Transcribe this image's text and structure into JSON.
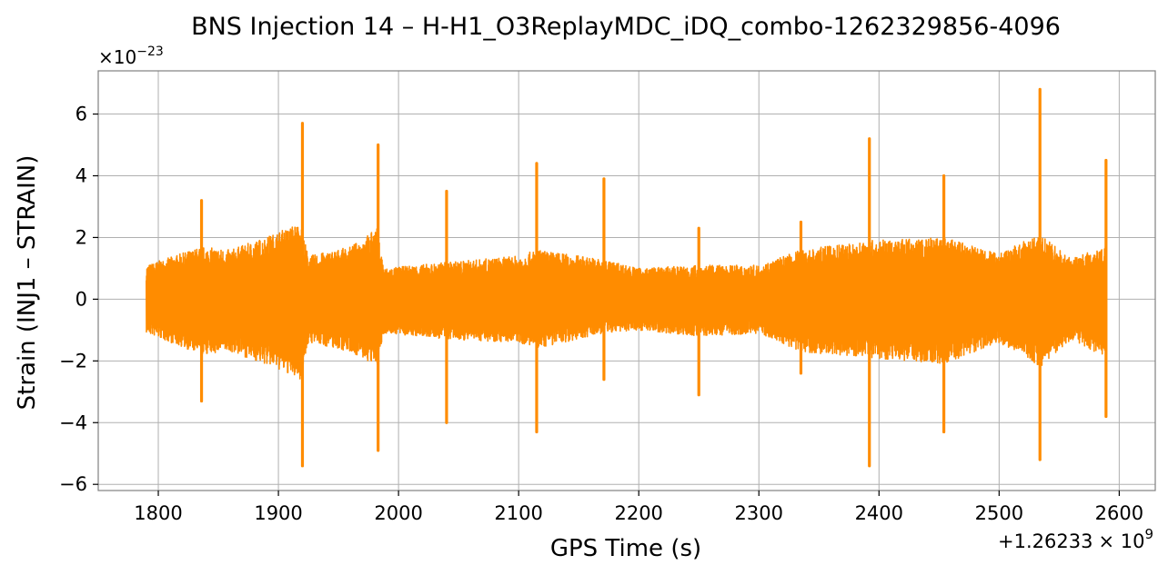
{
  "chart_data": {
    "type": "line",
    "title": "BNS Injection 14 – H-H1_O3ReplayMDC_iDQ_combo-1262329856-4096",
    "xlabel": "GPS Time (s)",
    "ylabel": "Strain (INJ1 – STRAIN)",
    "x_offset_label": "+1.26233",
    "x_offset_exponent_label": "× 10",
    "x_offset_exponent": "9",
    "y_scale_base": "×10",
    "y_scale_exponent": "−23",
    "xlim": [
      1750,
      2630
    ],
    "ylim": [
      -6.2,
      7.4
    ],
    "x_ticks": [
      1800,
      1900,
      2000,
      2100,
      2200,
      2300,
      2400,
      2500,
      2600
    ],
    "x_tick_labels": [
      "1800",
      "1900",
      "2000",
      "2100",
      "2200",
      "2300",
      "2400",
      "2500",
      "2600"
    ],
    "y_ticks": [
      -6,
      -4,
      -2,
      0,
      2,
      4,
      6
    ],
    "y_tick_labels": [
      "−6",
      "−4",
      "−2",
      "0",
      "2",
      "4",
      "6"
    ],
    "grid": true,
    "color": "#ff8c00",
    "time_range": [
      1790,
      2589
    ],
    "spikes": [
      {
        "t": 1836,
        "max": 3.2,
        "min": -3.3
      },
      {
        "t": 1920,
        "max": 5.7,
        "min": -5.4
      },
      {
        "t": 1983,
        "max": 5.0,
        "min": -4.9
      },
      {
        "t": 2040,
        "max": 3.5,
        "min": -4.0
      },
      {
        "t": 2115,
        "max": 4.4,
        "min": -4.3
      },
      {
        "t": 2171,
        "max": 3.9,
        "min": -2.6
      },
      {
        "t": 2250,
        "max": 2.3,
        "min": -3.1
      },
      {
        "t": 2335,
        "max": 2.5,
        "min": -2.4
      },
      {
        "t": 2392,
        "max": 5.2,
        "min": -5.4
      },
      {
        "t": 2454,
        "max": 4.0,
        "min": -4.3
      },
      {
        "t": 2534,
        "max": 6.8,
        "min": -5.2
      },
      {
        "t": 2589,
        "max": 4.5,
        "min": -3.8
      }
    ],
    "envelope": [
      {
        "t": 1790,
        "max": 1.1,
        "min": -1.1
      },
      {
        "t": 1836,
        "max": 1.7,
        "min": -1.8
      },
      {
        "t": 1860,
        "max": 1.6,
        "min": -1.7
      },
      {
        "t": 1895,
        "max": 2.1,
        "min": -2.2
      },
      {
        "t": 1918,
        "max": 2.5,
        "min": -2.6
      },
      {
        "t": 1925,
        "max": 1.4,
        "min": -1.4
      },
      {
        "t": 1960,
        "max": 1.7,
        "min": -1.7
      },
      {
        "t": 1982,
        "max": 2.3,
        "min": -2.2
      },
      {
        "t": 1988,
        "max": 1.0,
        "min": -1.1
      },
      {
        "t": 2040,
        "max": 1.2,
        "min": -1.3
      },
      {
        "t": 2100,
        "max": 1.4,
        "min": -1.4
      },
      {
        "t": 2115,
        "max": 1.6,
        "min": -1.6
      },
      {
        "t": 2171,
        "max": 1.3,
        "min": -1.1
      },
      {
        "t": 2200,
        "max": 1.0,
        "min": -1.0
      },
      {
        "t": 2250,
        "max": 1.1,
        "min": -1.2
      },
      {
        "t": 2300,
        "max": 1.1,
        "min": -1.1
      },
      {
        "t": 2335,
        "max": 1.6,
        "min": -1.7
      },
      {
        "t": 2392,
        "max": 1.9,
        "min": -1.9
      },
      {
        "t": 2454,
        "max": 2.0,
        "min": -2.1
      },
      {
        "t": 2500,
        "max": 1.5,
        "min": -1.4
      },
      {
        "t": 2534,
        "max": 2.1,
        "min": -2.2
      },
      {
        "t": 2560,
        "max": 1.3,
        "min": -1.3
      },
      {
        "t": 2589,
        "max": 1.8,
        "min": -1.9
      }
    ]
  }
}
